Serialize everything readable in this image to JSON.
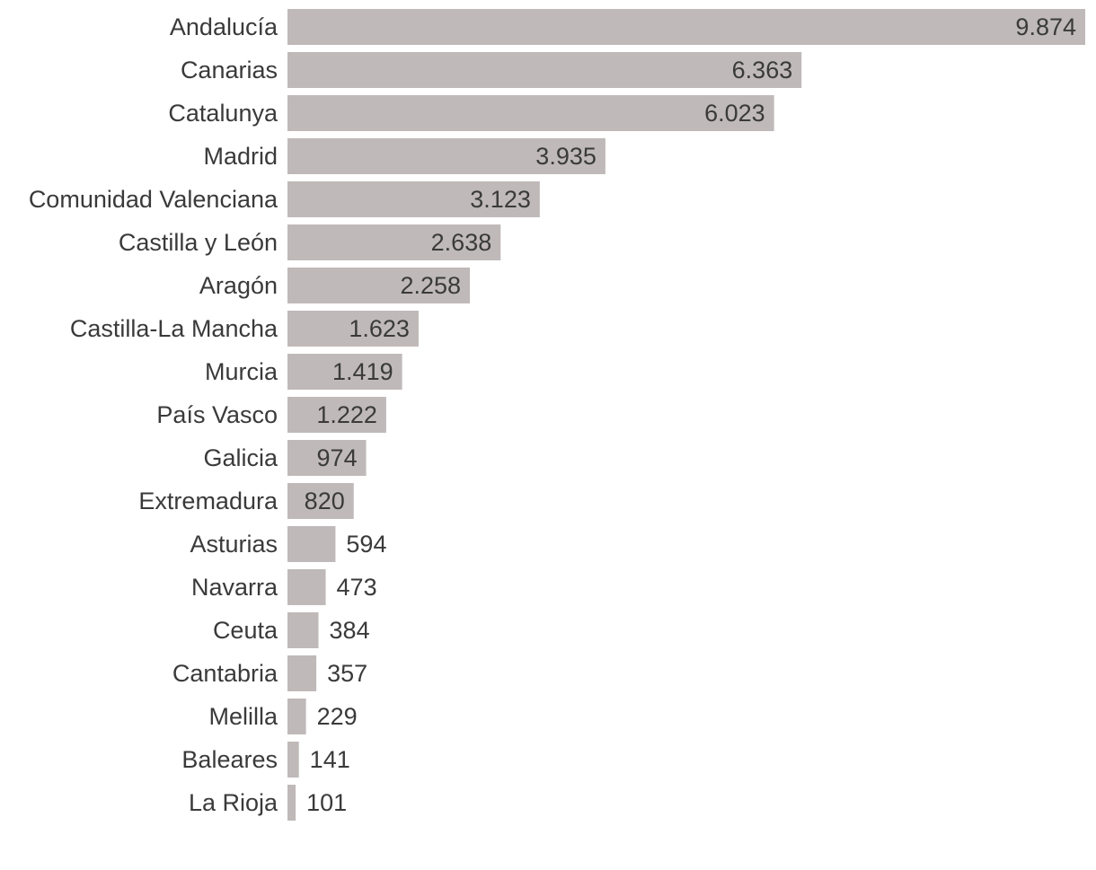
{
  "chart_data": {
    "type": "bar",
    "orientation": "horizontal",
    "categories": [
      "Andalucía",
      "Canarias",
      "Catalunya",
      "Madrid",
      "Comunidad Valenciana",
      "Castilla y León",
      "Aragón",
      "Castilla-La Mancha",
      "Murcia",
      "País Vasco",
      "Galicia",
      "Extremadura",
      "Asturias",
      "Navarra",
      "Ceuta",
      "Cantabria",
      "Melilla",
      "Baleares",
      "La Rioja"
    ],
    "values": [
      9874,
      6363,
      6023,
      3935,
      3123,
      2638,
      2258,
      1623,
      1419,
      1222,
      974,
      820,
      594,
      473,
      384,
      357,
      229,
      141,
      101
    ],
    "value_labels": [
      "9.874",
      "6.363",
      "6.023",
      "3.935",
      "3.123",
      "2.638",
      "2.258",
      "1.623",
      "1.419",
      "1.222",
      "974",
      "820",
      "594",
      "473",
      "384",
      "357",
      "229",
      "141",
      "101"
    ],
    "title": "",
    "xlabel": "",
    "ylabel": "",
    "xlim": [
      0,
      9874
    ],
    "grid": false,
    "legend": "none",
    "bar_color": "#c0b9b9",
    "text_color": "#3a3a3a"
  }
}
